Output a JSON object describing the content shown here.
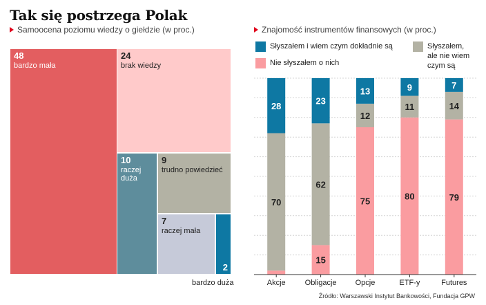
{
  "title": "Tak się postrzega Polak",
  "source": "Źródło: Warszawski Instytut Bankowości, Fundacja GPW",
  "colors": {
    "accent_triangle": "#e0001b",
    "blue": "#0e78a3",
    "gray": "#b3b2a4",
    "pink": "#fa9ca0"
  },
  "chart_data": [
    {
      "type": "treemap",
      "title": "Samoocena poziomu wiedzy o giełdzie (w proc.)",
      "categories": [
        "bardzo mała",
        "brak wiedzy",
        "raczej duża",
        "trudno powiedzieć",
        "raczej mała",
        "bardzo duża"
      ],
      "values": [
        48,
        24,
        10,
        9,
        7,
        2
      ],
      "colors": [
        "#e35e60",
        "#ffcaca",
        "#5e8d9c",
        "#b3b2a4",
        "#c6cad9",
        "#0e78a3"
      ]
    },
    {
      "type": "bar",
      "stacked": true,
      "title": "Znajomość instrumentów finansowych (w proc.)",
      "categories": [
        "Akcje",
        "Obligacje",
        "Opcje",
        "ETF-y",
        "Futures"
      ],
      "series": [
        {
          "name": "Nie słyszałem o nich",
          "color": "#fa9ca0",
          "values": [
            2,
            15,
            75,
            80,
            79
          ]
        },
        {
          "name": "Słyszałem, ale nie wiem czym są",
          "color": "#b3b2a4",
          "values": [
            70,
            62,
            12,
            11,
            14
          ]
        },
        {
          "name": "Słyszałem i wiem czym dokładnie są",
          "color": "#0e78a3",
          "values": [
            28,
            23,
            13,
            9,
            7
          ]
        }
      ],
      "ylim": [
        0,
        100
      ],
      "grid": true,
      "legend": "top"
    }
  ]
}
